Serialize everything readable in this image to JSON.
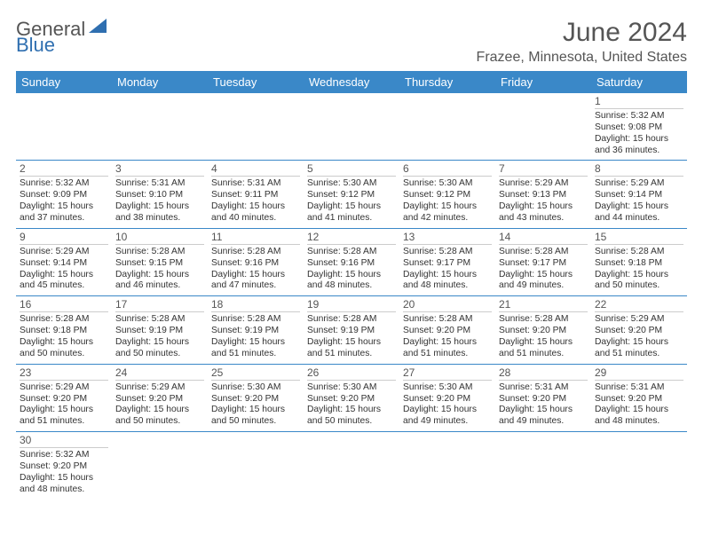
{
  "logo": {
    "part1": "General",
    "part2": "Blue"
  },
  "title": "June 2024",
  "location": "Frazee, Minnesota, United States",
  "colors": {
    "header_bg": "#3a88c8",
    "header_text": "#ffffff",
    "cell_border": "#3a88c8",
    "daynum_border": "#cccccc",
    "text": "#333333",
    "title_text": "#555555",
    "logo_gray": "#555555",
    "logo_blue": "#2f6fb0"
  },
  "day_headers": [
    "Sunday",
    "Monday",
    "Tuesday",
    "Wednesday",
    "Thursday",
    "Friday",
    "Saturday"
  ],
  "weeks": [
    [
      null,
      null,
      null,
      null,
      null,
      null,
      {
        "n": "1",
        "sr": "5:32 AM",
        "ss": "9:08 PM",
        "dl": "15 hours and 36 minutes."
      }
    ],
    [
      {
        "n": "2",
        "sr": "5:32 AM",
        "ss": "9:09 PM",
        "dl": "15 hours and 37 minutes."
      },
      {
        "n": "3",
        "sr": "5:31 AM",
        "ss": "9:10 PM",
        "dl": "15 hours and 38 minutes."
      },
      {
        "n": "4",
        "sr": "5:31 AM",
        "ss": "9:11 PM",
        "dl": "15 hours and 40 minutes."
      },
      {
        "n": "5",
        "sr": "5:30 AM",
        "ss": "9:12 PM",
        "dl": "15 hours and 41 minutes."
      },
      {
        "n": "6",
        "sr": "5:30 AM",
        "ss": "9:12 PM",
        "dl": "15 hours and 42 minutes."
      },
      {
        "n": "7",
        "sr": "5:29 AM",
        "ss": "9:13 PM",
        "dl": "15 hours and 43 minutes."
      },
      {
        "n": "8",
        "sr": "5:29 AM",
        "ss": "9:14 PM",
        "dl": "15 hours and 44 minutes."
      }
    ],
    [
      {
        "n": "9",
        "sr": "5:29 AM",
        "ss": "9:14 PM",
        "dl": "15 hours and 45 minutes."
      },
      {
        "n": "10",
        "sr": "5:28 AM",
        "ss": "9:15 PM",
        "dl": "15 hours and 46 minutes."
      },
      {
        "n": "11",
        "sr": "5:28 AM",
        "ss": "9:16 PM",
        "dl": "15 hours and 47 minutes."
      },
      {
        "n": "12",
        "sr": "5:28 AM",
        "ss": "9:16 PM",
        "dl": "15 hours and 48 minutes."
      },
      {
        "n": "13",
        "sr": "5:28 AM",
        "ss": "9:17 PM",
        "dl": "15 hours and 48 minutes."
      },
      {
        "n": "14",
        "sr": "5:28 AM",
        "ss": "9:17 PM",
        "dl": "15 hours and 49 minutes."
      },
      {
        "n": "15",
        "sr": "5:28 AM",
        "ss": "9:18 PM",
        "dl": "15 hours and 50 minutes."
      }
    ],
    [
      {
        "n": "16",
        "sr": "5:28 AM",
        "ss": "9:18 PM",
        "dl": "15 hours and 50 minutes."
      },
      {
        "n": "17",
        "sr": "5:28 AM",
        "ss": "9:19 PM",
        "dl": "15 hours and 50 minutes."
      },
      {
        "n": "18",
        "sr": "5:28 AM",
        "ss": "9:19 PM",
        "dl": "15 hours and 51 minutes."
      },
      {
        "n": "19",
        "sr": "5:28 AM",
        "ss": "9:19 PM",
        "dl": "15 hours and 51 minutes."
      },
      {
        "n": "20",
        "sr": "5:28 AM",
        "ss": "9:20 PM",
        "dl": "15 hours and 51 minutes."
      },
      {
        "n": "21",
        "sr": "5:28 AM",
        "ss": "9:20 PM",
        "dl": "15 hours and 51 minutes."
      },
      {
        "n": "22",
        "sr": "5:29 AM",
        "ss": "9:20 PM",
        "dl": "15 hours and 51 minutes."
      }
    ],
    [
      {
        "n": "23",
        "sr": "5:29 AM",
        "ss": "9:20 PM",
        "dl": "15 hours and 51 minutes."
      },
      {
        "n": "24",
        "sr": "5:29 AM",
        "ss": "9:20 PM",
        "dl": "15 hours and 50 minutes."
      },
      {
        "n": "25",
        "sr": "5:30 AM",
        "ss": "9:20 PM",
        "dl": "15 hours and 50 minutes."
      },
      {
        "n": "26",
        "sr": "5:30 AM",
        "ss": "9:20 PM",
        "dl": "15 hours and 50 minutes."
      },
      {
        "n": "27",
        "sr": "5:30 AM",
        "ss": "9:20 PM",
        "dl": "15 hours and 49 minutes."
      },
      {
        "n": "28",
        "sr": "5:31 AM",
        "ss": "9:20 PM",
        "dl": "15 hours and 49 minutes."
      },
      {
        "n": "29",
        "sr": "5:31 AM",
        "ss": "9:20 PM",
        "dl": "15 hours and 48 minutes."
      }
    ],
    [
      {
        "n": "30",
        "sr": "5:32 AM",
        "ss": "9:20 PM",
        "dl": "15 hours and 48 minutes."
      },
      null,
      null,
      null,
      null,
      null,
      null
    ]
  ],
  "labels": {
    "sunrise": "Sunrise:",
    "sunset": "Sunset:",
    "daylight": "Daylight:"
  }
}
